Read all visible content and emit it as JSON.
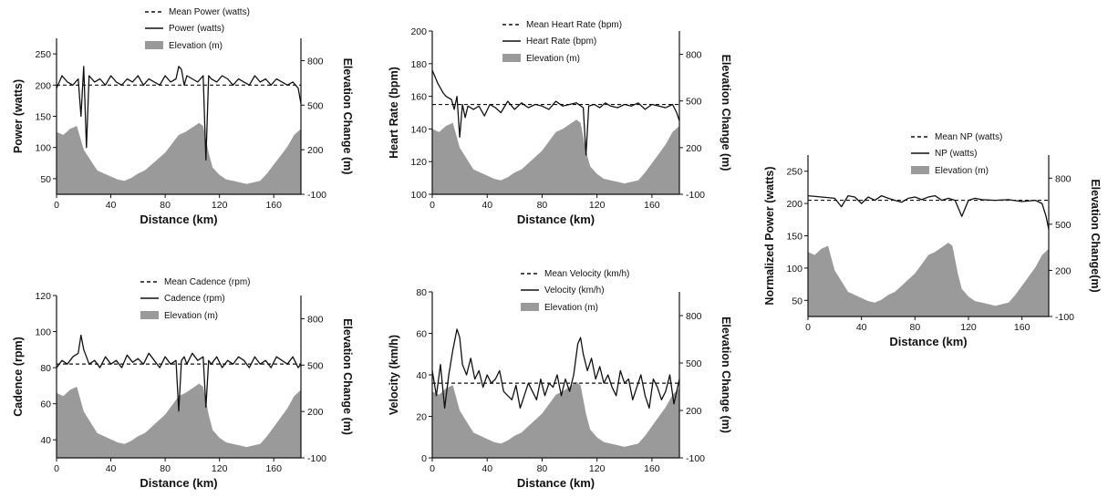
{
  "chart_data": [
    {
      "type": "line",
      "xlabel": "Distance (km)",
      "ylabel": "Power  (watts)",
      "y2label": "Elevation Change (m)",
      "xlim": [
        0,
        180
      ],
      "ylim": [
        25,
        275
      ],
      "y2lim": [
        -100,
        950
      ],
      "xticks": [
        0,
        40,
        80,
        120,
        160
      ],
      "yticks": [
        50,
        100,
        150,
        200,
        250
      ],
      "y2ticks": [
        -100,
        200,
        500,
        800
      ],
      "legend": [
        "Mean Power (watts)",
        "Power (watts)",
        "Elevation (m)"
      ],
      "mean": 200,
      "series": [
        {
          "name": "Power (watts)",
          "axis": "left",
          "x": [
            0,
            4,
            8,
            12,
            16,
            18,
            20,
            22,
            24,
            28,
            32,
            36,
            40,
            44,
            48,
            52,
            56,
            60,
            64,
            68,
            72,
            76,
            80,
            84,
            88,
            90,
            92,
            94,
            96,
            100,
            104,
            108,
            110,
            112,
            114,
            118,
            122,
            126,
            130,
            134,
            138,
            142,
            146,
            150,
            154,
            158,
            162,
            166,
            170,
            174,
            178,
            180
          ],
          "y": [
            195,
            215,
            205,
            200,
            210,
            150,
            230,
            100,
            215,
            205,
            210,
            200,
            215,
            205,
            200,
            210,
            205,
            215,
            200,
            210,
            205,
            200,
            215,
            205,
            210,
            230,
            225,
            200,
            215,
            210,
            205,
            215,
            80,
            215,
            210,
            205,
            215,
            210,
            200,
            210,
            205,
            200,
            215,
            205,
            210,
            200,
            210,
            205,
            200,
            205,
            195,
            170
          ]
        }
      ],
      "area": {
        "name": "Elevation (m)",
        "axis": "right",
        "x": [
          0,
          5,
          10,
          15,
          20,
          25,
          30,
          35,
          40,
          45,
          50,
          55,
          60,
          65,
          70,
          75,
          80,
          85,
          90,
          95,
          100,
          105,
          108,
          112,
          115,
          120,
          125,
          130,
          135,
          140,
          145,
          150,
          155,
          160,
          165,
          170,
          175,
          180
        ],
        "y": [
          320,
          300,
          340,
          360,
          200,
          130,
          60,
          40,
          20,
          0,
          -10,
          10,
          40,
          60,
          100,
          140,
          180,
          240,
          300,
          320,
          350,
          380,
          360,
          180,
          80,
          30,
          0,
          -10,
          -20,
          -30,
          -20,
          -10,
          40,
          100,
          160,
          220,
          300,
          340
        ]
      }
    },
    {
      "type": "line",
      "xlabel": "Distance (km)",
      "ylabel": "Heart Rate (bpm)",
      "y2label": "Elevation Change (m)",
      "xlim": [
        0,
        180
      ],
      "ylim": [
        100,
        200
      ],
      "y2lim": [
        -100,
        950
      ],
      "xticks": [
        0,
        40,
        80,
        120,
        160
      ],
      "yticks": [
        100,
        120,
        140,
        160,
        180,
        200
      ],
      "y2ticks": [
        -100,
        200,
        500,
        800
      ],
      "legend": [
        "Mean Heart Rate (bpm)",
        "Heart Rate (bpm)",
        "Elevation (m)"
      ],
      "mean": 155,
      "series": [
        {
          "name": "Heart Rate (bpm)",
          "axis": "left",
          "x": [
            0,
            2,
            4,
            6,
            8,
            10,
            12,
            14,
            16,
            18,
            20,
            22,
            24,
            26,
            30,
            34,
            38,
            42,
            46,
            50,
            55,
            60,
            65,
            70,
            75,
            80,
            85,
            90,
            95,
            100,
            105,
            110,
            112,
            114,
            118,
            122,
            126,
            130,
            135,
            140,
            145,
            150,
            155,
            160,
            165,
            170,
            175,
            178,
            180
          ],
          "y": [
            176,
            172,
            168,
            165,
            162,
            160,
            159,
            158,
            152,
            160,
            135,
            155,
            147,
            154,
            152,
            154,
            148,
            155,
            153,
            150,
            157,
            152,
            156,
            153,
            155,
            154,
            152,
            157,
            154,
            155,
            156,
            153,
            124,
            154,
            155,
            153,
            156,
            154,
            153,
            155,
            154,
            156,
            152,
            155,
            154,
            153,
            155,
            150,
            145
          ]
        }
      ],
      "area": {
        "name": "Elevation (m)",
        "axis": "right",
        "x": [
          0,
          5,
          10,
          15,
          20,
          25,
          30,
          35,
          40,
          45,
          50,
          55,
          60,
          65,
          70,
          75,
          80,
          85,
          90,
          95,
          100,
          105,
          108,
          112,
          115,
          120,
          125,
          130,
          135,
          140,
          145,
          150,
          155,
          160,
          165,
          170,
          175,
          180
        ],
        "y": [
          320,
          300,
          340,
          360,
          200,
          130,
          60,
          40,
          20,
          0,
          -10,
          10,
          40,
          60,
          100,
          140,
          180,
          240,
          300,
          320,
          350,
          380,
          360,
          180,
          80,
          30,
          0,
          -10,
          -20,
          -30,
          -20,
          -10,
          40,
          100,
          160,
          220,
          300,
          340
        ]
      }
    },
    {
      "type": "line",
      "xlabel": "Distance (km)",
      "ylabel": "Normalized Power (watts)",
      "y2label": "Elevation Change(m)",
      "xlim": [
        0,
        180
      ],
      "ylim": [
        25,
        275
      ],
      "y2lim": [
        -100,
        950
      ],
      "xticks": [
        0,
        40,
        80,
        120,
        160
      ],
      "yticks": [
        50,
        100,
        150,
        200,
        250
      ],
      "y2ticks": [
        -100,
        200,
        500,
        800
      ],
      "legend": [
        "Mean NP (watts)",
        "NP (watts)",
        "Elevation (m)"
      ],
      "mean": 205,
      "series": [
        {
          "name": "NP (watts)",
          "axis": "left",
          "x": [
            0,
            10,
            20,
            25,
            30,
            35,
            40,
            45,
            50,
            55,
            60,
            65,
            70,
            75,
            80,
            85,
            90,
            95,
            100,
            105,
            110,
            115,
            120,
            125,
            130,
            140,
            150,
            160,
            170,
            175,
            178,
            180
          ],
          "y": [
            212,
            210,
            208,
            195,
            212,
            210,
            200,
            210,
            205,
            212,
            208,
            205,
            202,
            208,
            210,
            206,
            210,
            212,
            205,
            208,
            205,
            180,
            205,
            208,
            206,
            205,
            206,
            203,
            205,
            200,
            180,
            160
          ]
        }
      ],
      "area": {
        "name": "Elevation (m)",
        "axis": "right",
        "x": [
          0,
          5,
          10,
          15,
          20,
          25,
          30,
          35,
          40,
          45,
          50,
          55,
          60,
          65,
          70,
          75,
          80,
          85,
          90,
          95,
          100,
          105,
          108,
          112,
          115,
          120,
          125,
          130,
          135,
          140,
          145,
          150,
          155,
          160,
          165,
          170,
          175,
          180
        ],
        "y": [
          320,
          300,
          340,
          360,
          200,
          130,
          60,
          40,
          20,
          0,
          -10,
          10,
          40,
          60,
          100,
          140,
          180,
          240,
          300,
          320,
          350,
          380,
          360,
          180,
          80,
          30,
          0,
          -10,
          -20,
          -30,
          -20,
          -10,
          40,
          100,
          160,
          220,
          300,
          340
        ]
      }
    },
    {
      "type": "line",
      "xlabel": "Distance (km)",
      "ylabel": "Cadence (rpm)",
      "y2label": "Elevation Change (m)",
      "xlim": [
        0,
        180
      ],
      "ylim": [
        30,
        120
      ],
      "y2lim": [
        -100,
        950
      ],
      "xticks": [
        0,
        40,
        80,
        120,
        160
      ],
      "yticks": [
        40,
        60,
        80,
        100,
        120
      ],
      "y2ticks": [
        -100,
        200,
        500,
        800
      ],
      "legend": [
        "Mean Cadence (rpm)",
        "Cadence (rpm)",
        "Elevation (m)"
      ],
      "mean": 82,
      "series": [
        {
          "name": "Cadence (rpm)",
          "axis": "left",
          "x": [
            0,
            4,
            8,
            12,
            16,
            18,
            20,
            22,
            24,
            28,
            32,
            36,
            40,
            44,
            48,
            52,
            56,
            60,
            64,
            68,
            72,
            76,
            80,
            84,
            88,
            90,
            92,
            94,
            96,
            100,
            104,
            108,
            110,
            112,
            114,
            118,
            122,
            126,
            130,
            134,
            138,
            142,
            146,
            150,
            154,
            158,
            162,
            166,
            170,
            174,
            178,
            180
          ],
          "y": [
            80,
            84,
            82,
            86,
            88,
            98,
            90,
            86,
            82,
            84,
            80,
            86,
            82,
            84,
            80,
            87,
            83,
            85,
            82,
            88,
            84,
            80,
            86,
            82,
            84,
            56,
            84,
            86,
            82,
            88,
            84,
            86,
            58,
            84,
            82,
            86,
            80,
            84,
            82,
            86,
            84,
            80,
            86,
            82,
            84,
            80,
            86,
            84,
            82,
            86,
            80,
            82
          ]
        }
      ],
      "area": {
        "name": "Elevation (m)",
        "axis": "right",
        "x": [
          0,
          5,
          10,
          15,
          20,
          25,
          30,
          35,
          40,
          45,
          50,
          55,
          60,
          65,
          70,
          75,
          80,
          85,
          90,
          95,
          100,
          105,
          108,
          112,
          115,
          120,
          125,
          130,
          135,
          140,
          145,
          150,
          155,
          160,
          165,
          170,
          175,
          180
        ],
        "y": [
          320,
          300,
          340,
          360,
          200,
          130,
          60,
          40,
          20,
          0,
          -10,
          10,
          40,
          60,
          100,
          140,
          180,
          240,
          300,
          320,
          350,
          380,
          360,
          180,
          80,
          30,
          0,
          -10,
          -20,
          -30,
          -20,
          -10,
          40,
          100,
          160,
          220,
          300,
          340
        ]
      }
    },
    {
      "type": "line",
      "xlabel": "Distance (km)",
      "ylabel": "Velocity (km/h)",
      "y2label": "Elevation Change (m)",
      "xlim": [
        0,
        180
      ],
      "ylim": [
        0,
        80
      ],
      "y2lim": [
        -100,
        950
      ],
      "xticks": [
        0,
        40,
        80,
        120,
        160
      ],
      "yticks": [
        0,
        20,
        40,
        60,
        80
      ],
      "y2ticks": [
        -100,
        200,
        500,
        800
      ],
      "legend": [
        "Mean Velocity (km/h)",
        "Velocity (km/h)",
        "Elevation (m)"
      ],
      "mean": 36,
      "series": [
        {
          "name": "Velocity (km/h)",
          "axis": "left",
          "x": [
            0,
            3,
            6,
            9,
            12,
            15,
            18,
            20,
            22,
            25,
            28,
            31,
            34,
            37,
            40,
            43,
            46,
            49,
            52,
            55,
            58,
            61,
            64,
            67,
            70,
            73,
            76,
            79,
            82,
            85,
            88,
            91,
            94,
            97,
            100,
            103,
            106,
            108,
            110,
            113,
            116,
            119,
            122,
            125,
            128,
            131,
            134,
            137,
            140,
            143,
            146,
            149,
            152,
            155,
            158,
            161,
            164,
            167,
            170,
            173,
            176,
            180
          ],
          "y": [
            42,
            30,
            45,
            24,
            40,
            52,
            62,
            58,
            45,
            40,
            48,
            38,
            42,
            34,
            40,
            36,
            38,
            42,
            32,
            30,
            28,
            35,
            24,
            30,
            36,
            32,
            28,
            38,
            30,
            36,
            34,
            40,
            30,
            38,
            32,
            40,
            55,
            58,
            50,
            42,
            48,
            38,
            44,
            36,
            40,
            34,
            30,
            42,
            36,
            38,
            28,
            34,
            40,
            30,
            24,
            38,
            34,
            28,
            32,
            40,
            26,
            38
          ]
        }
      ],
      "area": {
        "name": "Elevation (m)",
        "axis": "right",
        "x": [
          0,
          5,
          10,
          15,
          20,
          25,
          30,
          35,
          40,
          45,
          50,
          55,
          60,
          65,
          70,
          75,
          80,
          85,
          90,
          95,
          100,
          105,
          108,
          112,
          115,
          120,
          125,
          130,
          135,
          140,
          145,
          150,
          155,
          160,
          165,
          170,
          175,
          180
        ],
        "y": [
          320,
          300,
          340,
          360,
          200,
          130,
          60,
          40,
          20,
          0,
          -10,
          10,
          40,
          60,
          100,
          140,
          180,
          240,
          300,
          320,
          350,
          380,
          360,
          180,
          80,
          30,
          0,
          -10,
          -20,
          -30,
          -20,
          -10,
          40,
          100,
          160,
          220,
          300,
          340
        ]
      }
    }
  ]
}
